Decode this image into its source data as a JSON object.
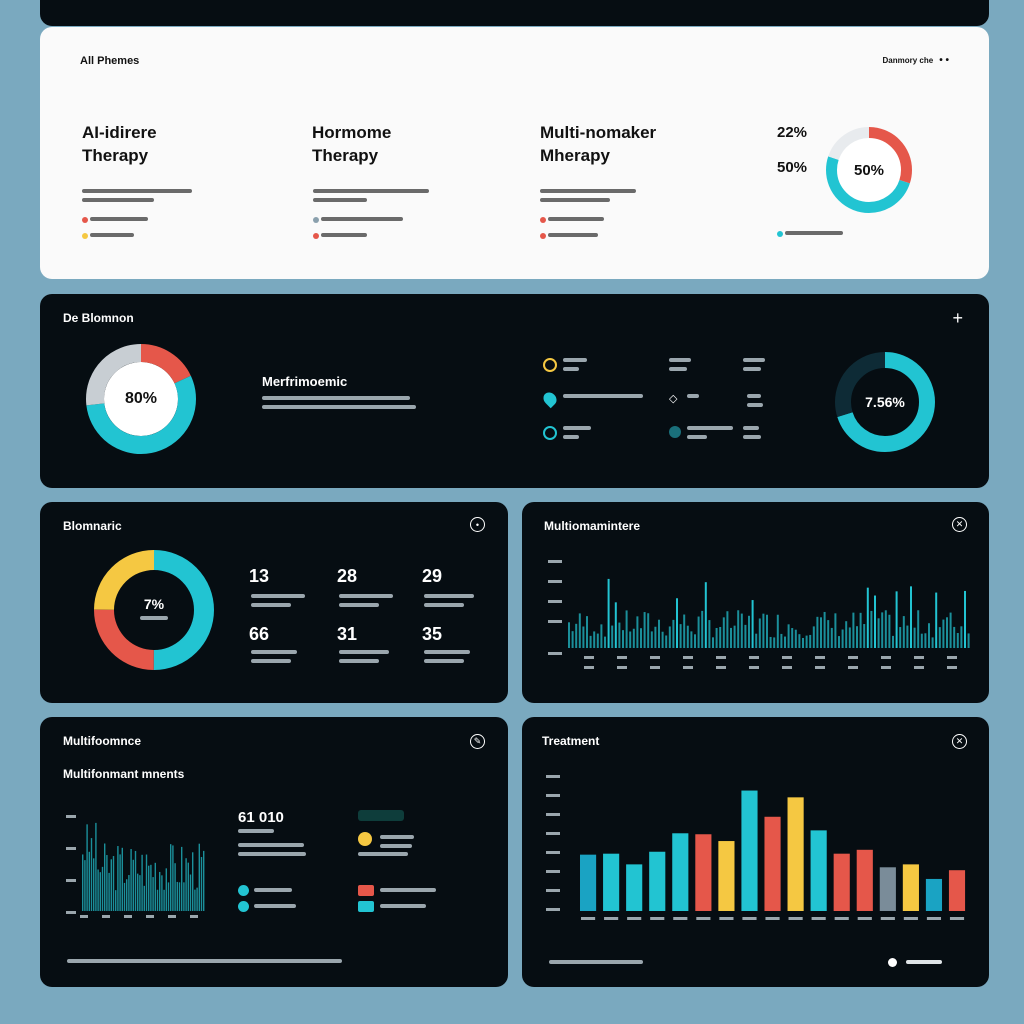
{
  "colors": {
    "teal": "#22c4d2",
    "red": "#e5574a",
    "yellow": "#f5c842",
    "gray": "#c8ced3",
    "navy": "#0e2b36",
    "bg": "#7aa9bf",
    "card_dark": "#060d12"
  },
  "panel1": {
    "title": "All Phemes",
    "header_right": "Danmory che",
    "columns": [
      {
        "title_line1": "AI-idirere",
        "title_line2": "Therapy"
      },
      {
        "title_line1": "Hormome",
        "title_line2": "Therapy"
      },
      {
        "title_line1": "Multi-nomaker",
        "title_line2": "Mherapy"
      }
    ],
    "stat_22": "22%",
    "stat_50": "50%",
    "donut_label": "50%",
    "donut": [
      {
        "value": 30,
        "color": "#e5574a"
      },
      {
        "value": 50,
        "color": "#22c4d2"
      },
      {
        "value": 20,
        "color": "#e8ebee"
      }
    ]
  },
  "panel2": {
    "title": "De Blomnon",
    "plus_icon": "plus-icon",
    "donut_label": "80%",
    "donut": [
      {
        "value": 18,
        "color": "#e5574a"
      },
      {
        "value": 55,
        "color": "#22c4d2"
      },
      {
        "value": 27,
        "color": "#c8ced3"
      }
    ],
    "subtitle": "Merfrimoemic",
    "right_donut_label": "7.56%",
    "right_donut": [
      {
        "value": 70,
        "color": "#22c4d2"
      },
      {
        "value": 30,
        "color": "#0e2b36"
      }
    ]
  },
  "panel3": {
    "title": "Blomnaric",
    "donut_label": "7%",
    "donut": [
      {
        "value": 50,
        "color": "#22c4d2"
      },
      {
        "value": 25,
        "color": "#e5574a"
      },
      {
        "value": 25,
        "color": "#f5c842"
      }
    ],
    "stats": [
      "13",
      "28",
      "29",
      "66",
      "31",
      "35"
    ]
  },
  "panel4": {
    "title": "Multiomamintere"
  },
  "panel5": {
    "title": "Multifoomnce",
    "subtitle": "Multifonmant mnents",
    "big_value": "61 010"
  },
  "panel6": {
    "title": "Treatment"
  },
  "chart_data": {
    "type": "bar",
    "title": "Treatment",
    "values": [
      58,
      59,
      48,
      61,
      80,
      79,
      72,
      124,
      97,
      117,
      83,
      59,
      63,
      45,
      48,
      33,
      42
    ],
    "colors": [
      "#1aa3c3",
      "#22c4d2",
      "#22c4d2",
      "#22c4d2",
      "#22c4d2",
      "#e5574a",
      "#f5c842",
      "#22c4d2",
      "#e5574a",
      "#f5c842",
      "#22c4d2",
      "#e5574a",
      "#e5574a",
      "#7a8c99",
      "#f5c842",
      "#1aa3c3",
      "#e5574a"
    ],
    "ylim": [
      0,
      140
    ]
  }
}
